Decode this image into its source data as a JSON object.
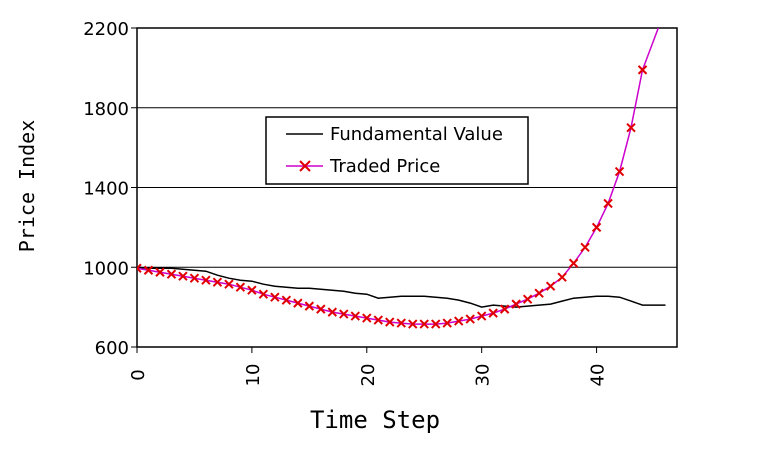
{
  "chart_data": {
    "type": "line",
    "title": "",
    "xlabel": "Time Step",
    "ylabel": "Price Index",
    "xlim": [
      0,
      47
    ],
    "ylim": [
      600,
      2200
    ],
    "yticks": [
      600,
      1000,
      1400,
      1800,
      2200
    ],
    "xticks": [
      0,
      10,
      20,
      30,
      40
    ],
    "xtick_labels": [
      "0",
      "10",
      "20",
      "30",
      "40"
    ],
    "ytick_labels": [
      "600",
      "1000",
      "1400",
      "1800",
      "2200"
    ],
    "grid": "horizontal",
    "legend_position": "center",
    "series": [
      {
        "name": "Fundamental Value",
        "color": "#000000",
        "marker": "none",
        "x": [
          0,
          1,
          2,
          3,
          4,
          5,
          6,
          7,
          8,
          9,
          10,
          11,
          12,
          13,
          14,
          15,
          16,
          17,
          18,
          19,
          20,
          21,
          22,
          23,
          24,
          25,
          26,
          27,
          28,
          29,
          30,
          31,
          32,
          33,
          34,
          35,
          36,
          37,
          38,
          39,
          40,
          41,
          42,
          43,
          44,
          45,
          46
        ],
        "values": [
          1000,
          995,
          995,
          995,
          990,
          985,
          980,
          960,
          945,
          935,
          930,
          915,
          905,
          900,
          895,
          895,
          890,
          885,
          880,
          870,
          865,
          845,
          850,
          855,
          855,
          855,
          850,
          845,
          835,
          820,
          800,
          810,
          805,
          800,
          805,
          810,
          815,
          830,
          845,
          850,
          855,
          855,
          850,
          830,
          810,
          810,
          810
        ]
      },
      {
        "name": "Traded Price",
        "color": "#cc00cc",
        "marker": "x",
        "marker_color": "#e00000",
        "x": [
          0,
          1,
          2,
          3,
          4,
          5,
          6,
          7,
          8,
          9,
          10,
          11,
          12,
          13,
          14,
          15,
          16,
          17,
          18,
          19,
          20,
          21,
          22,
          23,
          24,
          25,
          26,
          27,
          28,
          29,
          30,
          31,
          32,
          33,
          34,
          35,
          36,
          37,
          38,
          39,
          40,
          41,
          42,
          43,
          44,
          45.5
        ],
        "values": [
          995,
          985,
          975,
          965,
          955,
          945,
          935,
          925,
          915,
          900,
          885,
          865,
          850,
          835,
          820,
          805,
          790,
          775,
          765,
          755,
          745,
          735,
          725,
          720,
          715,
          715,
          715,
          720,
          730,
          740,
          755,
          770,
          790,
          815,
          840,
          870,
          905,
          950,
          1020,
          1100,
          1200,
          1320,
          1480,
          1700,
          1990,
          2220
        ]
      }
    ]
  }
}
